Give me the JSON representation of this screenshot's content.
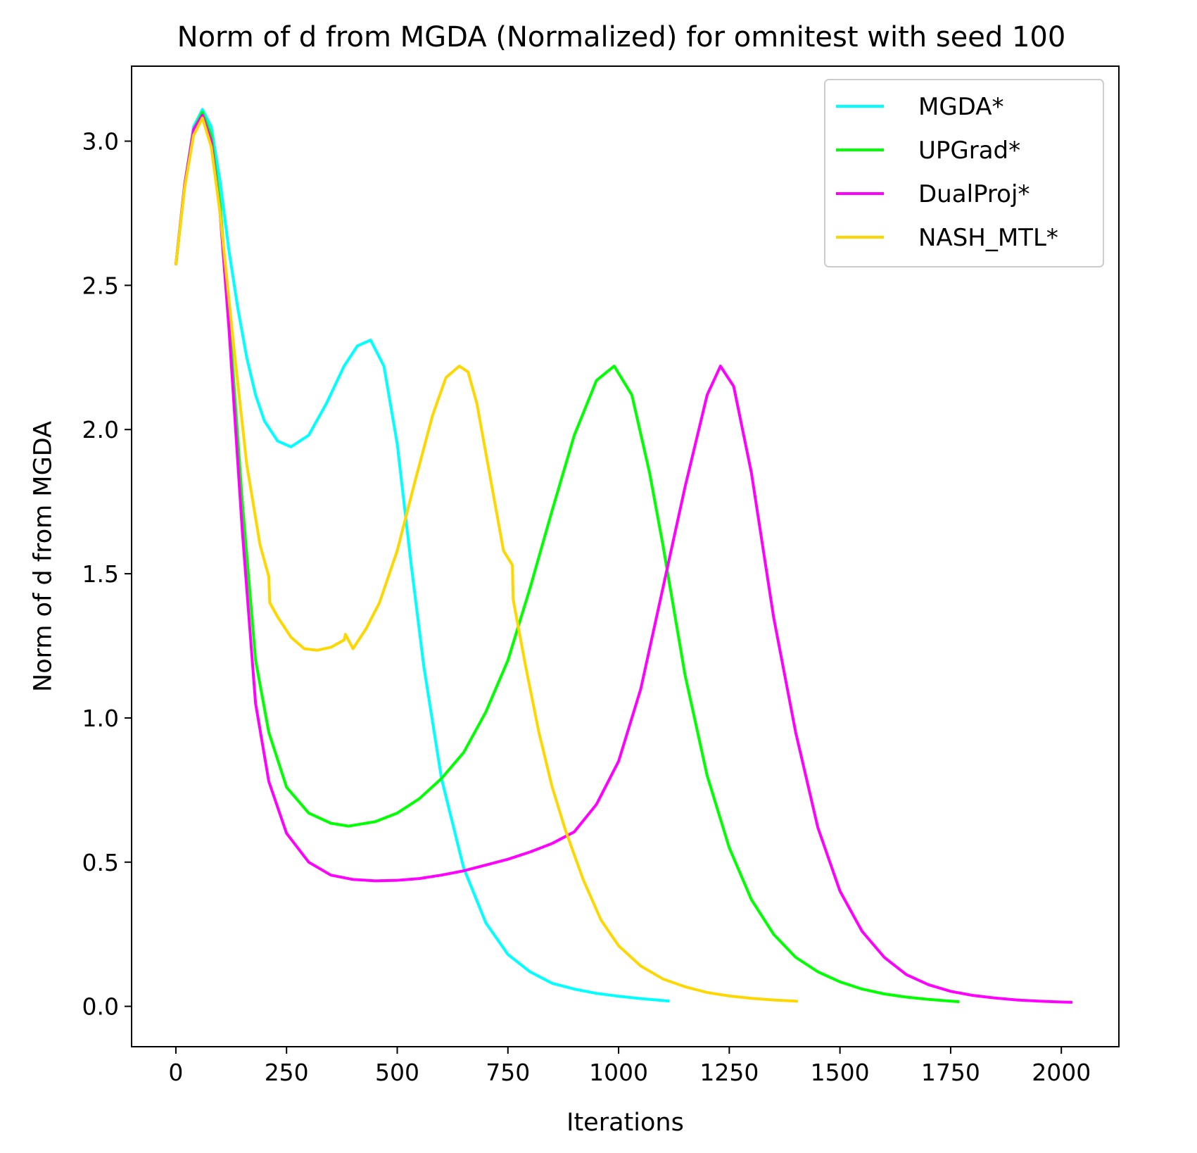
{
  "chart_data": {
    "type": "line",
    "title": "Norm of d from MGDA (Normalized) for omnitest with seed 100",
    "xlabel": "Iterations",
    "ylabel": "Norm of d from MGDA",
    "xlim": [
      -100,
      2130
    ],
    "ylim": [
      -0.14,
      3.26
    ],
    "xticks": [
      0,
      250,
      500,
      750,
      1000,
      1250,
      1500,
      1750,
      2000
    ],
    "xtick_labels": [
      "0",
      "250",
      "500",
      "750",
      "1000",
      "1250",
      "1500",
      "1750",
      "2000"
    ],
    "yticks": [
      0.0,
      0.5,
      1.0,
      1.5,
      2.0,
      2.5,
      3.0
    ],
    "ytick_labels": [
      "0.0",
      "0.5",
      "1.0",
      "1.5",
      "2.0",
      "2.5",
      "3.0"
    ],
    "grid": false,
    "legend_position": "top-right",
    "series": [
      {
        "name": "MGDA*",
        "color": "#00ffff",
        "x": [
          0,
          20,
          40,
          60,
          80,
          100,
          120,
          140,
          160,
          180,
          200,
          230,
          260,
          300,
          340,
          380,
          410,
          440,
          470,
          500,
          530,
          560,
          600,
          650,
          700,
          750,
          800,
          850,
          900,
          950,
          1000,
          1050,
          1100,
          1115
        ],
        "y": [
          2.57,
          2.85,
          3.05,
          3.11,
          3.05,
          2.86,
          2.62,
          2.42,
          2.25,
          2.12,
          2.03,
          1.96,
          1.94,
          1.98,
          2.09,
          2.22,
          2.29,
          2.31,
          2.22,
          1.95,
          1.55,
          1.18,
          0.79,
          0.48,
          0.29,
          0.18,
          0.12,
          0.08,
          0.06,
          0.045,
          0.035,
          0.027,
          0.02,
          0.018
        ]
      },
      {
        "name": "UPGrad*",
        "color": "#00ff00",
        "x": [
          0,
          20,
          40,
          60,
          80,
          100,
          120,
          150,
          180,
          210,
          250,
          300,
          350,
          390,
          450,
          500,
          550,
          600,
          650,
          700,
          750,
          800,
          850,
          900,
          950,
          990,
          1030,
          1070,
          1100,
          1150,
          1200,
          1250,
          1300,
          1350,
          1400,
          1450,
          1500,
          1550,
          1600,
          1650,
          1700,
          1750,
          1770
        ],
        "y": [
          2.57,
          2.85,
          3.04,
          3.1,
          3.02,
          2.78,
          2.4,
          1.75,
          1.2,
          0.95,
          0.76,
          0.67,
          0.635,
          0.625,
          0.64,
          0.67,
          0.72,
          0.79,
          0.88,
          1.02,
          1.2,
          1.45,
          1.72,
          1.98,
          2.17,
          2.22,
          2.12,
          1.85,
          1.6,
          1.15,
          0.8,
          0.55,
          0.37,
          0.25,
          0.17,
          0.12,
          0.085,
          0.06,
          0.043,
          0.032,
          0.024,
          0.018,
          0.016
        ]
      },
      {
        "name": "DualProj*",
        "color": "#ff00ff",
        "x": [
          0,
          20,
          40,
          60,
          80,
          100,
          120,
          150,
          180,
          210,
          250,
          300,
          350,
          400,
          450,
          500,
          550,
          600,
          650,
          700,
          750,
          800,
          850,
          900,
          950,
          1000,
          1050,
          1100,
          1150,
          1200,
          1230,
          1260,
          1300,
          1350,
          1400,
          1450,
          1500,
          1550,
          1600,
          1650,
          1700,
          1750,
          1800,
          1850,
          1900,
          1950,
          2000,
          2025
        ],
        "y": [
          2.57,
          2.85,
          3.04,
          3.09,
          3.0,
          2.75,
          2.35,
          1.65,
          1.05,
          0.78,
          0.6,
          0.5,
          0.455,
          0.44,
          0.435,
          0.437,
          0.443,
          0.455,
          0.47,
          0.49,
          0.51,
          0.535,
          0.565,
          0.605,
          0.7,
          0.85,
          1.1,
          1.45,
          1.8,
          2.12,
          2.22,
          2.15,
          1.85,
          1.35,
          0.95,
          0.62,
          0.4,
          0.26,
          0.17,
          0.11,
          0.075,
          0.052,
          0.038,
          0.029,
          0.022,
          0.018,
          0.015,
          0.014
        ]
      },
      {
        "name": "NASH_MTL*",
        "color": "#ffd700",
        "x": [
          0,
          20,
          40,
          60,
          80,
          100,
          130,
          160,
          190,
          210,
          212,
          230,
          260,
          290,
          320,
          350,
          380,
          383,
          400,
          430,
          460,
          500,
          540,
          580,
          610,
          640,
          660,
          680,
          700,
          720,
          740,
          760,
          762,
          790,
          820,
          850,
          880,
          920,
          960,
          1000,
          1050,
          1100,
          1150,
          1200,
          1250,
          1300,
          1350,
          1400,
          1405
        ],
        "y": [
          2.57,
          2.84,
          3.02,
          3.08,
          2.98,
          2.75,
          2.3,
          1.88,
          1.6,
          1.49,
          1.4,
          1.35,
          1.28,
          1.24,
          1.235,
          1.245,
          1.27,
          1.29,
          1.24,
          1.31,
          1.4,
          1.58,
          1.82,
          2.05,
          2.18,
          2.22,
          2.2,
          2.09,
          1.92,
          1.75,
          1.58,
          1.53,
          1.41,
          1.18,
          0.95,
          0.76,
          0.61,
          0.44,
          0.3,
          0.21,
          0.14,
          0.095,
          0.068,
          0.048,
          0.036,
          0.028,
          0.022,
          0.018,
          0.017
        ]
      }
    ]
  }
}
